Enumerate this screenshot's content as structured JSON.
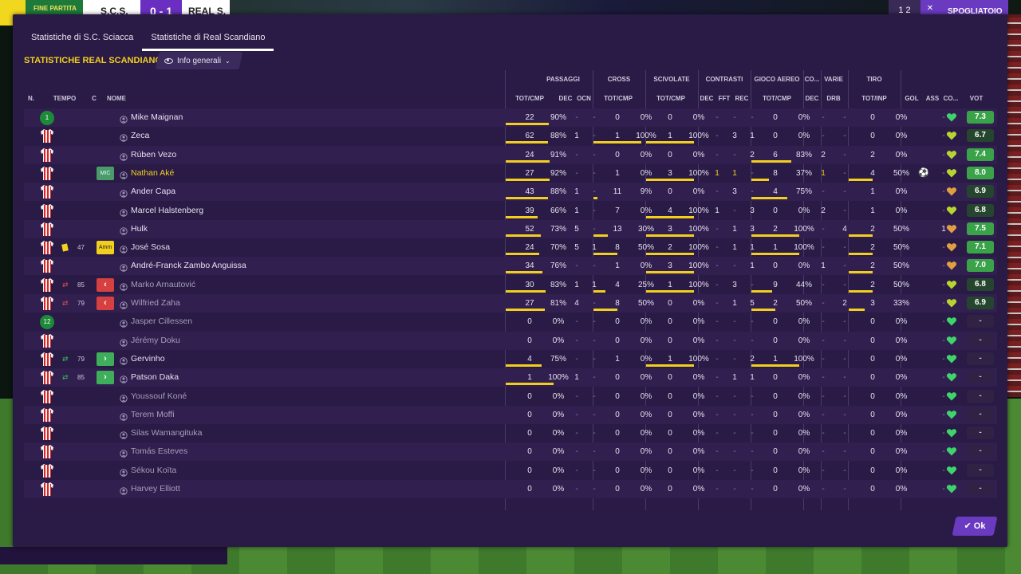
{
  "scoreboard": {
    "status": "FINE PARTITA",
    "home": "S.C.S.",
    "score": "0 - 1",
    "away": "REAL S."
  },
  "topbar": {
    "page": "1 2",
    "button": "SPOGLIATOIO"
  },
  "tabs": [
    {
      "label": "Statistiche di S.C. Sciacca"
    },
    {
      "label": "Statistiche di Real Scandiano",
      "active": true
    }
  ],
  "section_title": "STATISTICHE REAL SCANDIANO",
  "view_dropdown": {
    "label": "Info generali",
    "icon": "eye-icon"
  },
  "group_headers": {
    "passaggi": "PASSAGGI",
    "cross": "CROSS",
    "scivolate": "SCIVOLATE",
    "contrasti": "CONTRASTI",
    "gioco_aereo": "GIOCO AEREO",
    "co": "CO...",
    "varie": "VARIE",
    "tiro": "TIRO"
  },
  "columns": {
    "n": "N.",
    "tempo": "TEMPO",
    "c": "C",
    "nome": "NOME",
    "pass_totcmp": "TOT/CMP",
    "pass_dec": "DEC",
    "pass_ocn": "OCN",
    "cross_totcmp": "TOT/CMP",
    "sciv_totcmp": "TOT/CMP",
    "contr_dec": "DEC",
    "contr_fft": "FFT",
    "contr_rec": "REC",
    "aereo_totcmp": "TOT/CMP",
    "co_dec": "DEC",
    "varie_drb": "DRB",
    "tiro_totinp": "TOT/INP",
    "gol": "GOL",
    "ass": "ASS",
    "co": "CO...",
    "vot": "VOT"
  },
  "players": [
    {
      "badge": "1",
      "badge_type": "number",
      "name": "Mike Maignan",
      "pass": [
        "22",
        "90%"
      ],
      "pass_fill": 0.9,
      "pass_dec": "-",
      "pass_ocn": "-",
      "cross": [
        "0",
        "0%"
      ],
      "cross_fill": 0,
      "sciv": [
        "0",
        "0%"
      ],
      "sciv_fill": 0,
      "contr": [
        "-",
        "-",
        "-"
      ],
      "aereo": [
        "0",
        "0%"
      ],
      "aereo_fill": 0,
      "co_dec": "-",
      "drb": "-",
      "tiro": [
        "0",
        "0%"
      ],
      "tiro_fill": 0,
      "gol": "",
      "ass": "-",
      "vot": "7.3",
      "heart": "#3fd46a"
    },
    {
      "badge_type": "shirt",
      "name": "Zeca",
      "pass": [
        "62",
        "88%"
      ],
      "pass_fill": 0.88,
      "pass_dec": "1",
      "pass_ocn": "-",
      "cross": [
        "1",
        "100%"
      ],
      "cross_fill": 1,
      "sciv": [
        "1",
        "100%"
      ],
      "sciv_fill": 1,
      "contr": [
        "-",
        "3",
        "1"
      ],
      "aereo": [
        "0",
        "0%"
      ],
      "aereo_fill": 0,
      "co_dec": "-",
      "drb": "-",
      "tiro": [
        "0",
        "0%"
      ],
      "tiro_fill": 0,
      "gol": "",
      "ass": "-",
      "vot": "6.7",
      "heart": "#b8d430"
    },
    {
      "badge_type": "shirt",
      "name": "Rúben Vezo",
      "pass": [
        "24",
        "91%"
      ],
      "pass_fill": 0.91,
      "pass_dec": "-",
      "pass_ocn": "-",
      "cross": [
        "0",
        "0%"
      ],
      "cross_fill": 0,
      "sciv": [
        "0",
        "0%"
      ],
      "sciv_fill": 0,
      "contr": [
        "-",
        "-",
        "2"
      ],
      "aereo": [
        "6",
        "83%"
      ],
      "aereo_fill": 0.83,
      "co_dec": "2",
      "drb": "-",
      "tiro": [
        "2",
        "0%"
      ],
      "tiro_fill": 0,
      "gol": "",
      "ass": "-",
      "vot": "7.4",
      "heart": "#b8d430"
    },
    {
      "badge_type": "shirt",
      "pos": "MIC",
      "name": "Nathan Aké",
      "highlight": true,
      "pass": [
        "27",
        "92%"
      ],
      "pass_fill": 0.92,
      "pass_dec": "-",
      "pass_ocn": "-",
      "cross": [
        "1",
        "0%"
      ],
      "cross_fill": 0,
      "sciv": [
        "3",
        "100%"
      ],
      "sciv_fill": 1,
      "contr": [
        "1",
        "1",
        "-"
      ],
      "contr_hl": true,
      "aereo": [
        "8",
        "37%"
      ],
      "aereo_fill": 0.37,
      "co_dec": "1",
      "co_hl": true,
      "drb": "-",
      "tiro": [
        "4",
        "50%"
      ],
      "tiro_fill": 0.5,
      "gol": "ball",
      "ass": "-",
      "vot": "8.0",
      "heart": "#b8d430"
    },
    {
      "badge_type": "shirt",
      "name": "Ander Capa",
      "pass": [
        "43",
        "88%"
      ],
      "pass_fill": 0.88,
      "pass_dec": "1",
      "pass_ocn": "-",
      "cross": [
        "11",
        "9%"
      ],
      "cross_fill": 0.09,
      "sciv": [
        "0",
        "0%"
      ],
      "sciv_fill": 0,
      "contr": [
        "-",
        "3",
        "-"
      ],
      "aereo": [
        "4",
        "75%"
      ],
      "aereo_fill": 0.75,
      "co_dec": "-",
      "drb": "-",
      "tiro": [
        "1",
        "0%"
      ],
      "tiro_fill": 0,
      "gol": "",
      "ass": "-",
      "vot": "6.9",
      "heart": "#e0a040"
    },
    {
      "badge_type": "shirt",
      "name": "Marcel Halstenberg",
      "pass": [
        "39",
        "66%"
      ],
      "pass_fill": 0.66,
      "pass_dec": "1",
      "pass_ocn": "-",
      "cross": [
        "7",
        "0%"
      ],
      "cross_fill": 0,
      "sciv": [
        "4",
        "100%"
      ],
      "sciv_fill": 1,
      "contr": [
        "1",
        "-",
        "3"
      ],
      "aereo": [
        "0",
        "0%"
      ],
      "aereo_fill": 0,
      "co_dec": "2",
      "drb": "-",
      "tiro": [
        "1",
        "0%"
      ],
      "tiro_fill": 0,
      "gol": "",
      "ass": "-",
      "vot": "6.8",
      "heart": "#b8d430"
    },
    {
      "badge_type": "shirt",
      "name": "Hulk",
      "pass": [
        "52",
        "73%"
      ],
      "pass_fill": 0.73,
      "pass_dec": "5",
      "pass_ocn": "-",
      "cross": [
        "13",
        "30%"
      ],
      "cross_fill": 0.3,
      "sciv": [
        "3",
        "100%"
      ],
      "sciv_fill": 1,
      "contr": [
        "-",
        "1",
        "3"
      ],
      "aereo": [
        "2",
        "100%"
      ],
      "aereo_fill": 1,
      "co_dec": "-",
      "drb": "4",
      "tiro": [
        "2",
        "50%"
      ],
      "tiro_fill": 0.5,
      "gol": "",
      "ass": "1",
      "vot": "7.5",
      "heart": "#e0a040"
    },
    {
      "badge_type": "shirt",
      "card": "yellow",
      "minute": "47",
      "pos": "Amm",
      "pos_yellow": true,
      "name": "José Sosa",
      "pass": [
        "24",
        "70%"
      ],
      "pass_fill": 0.7,
      "pass_dec": "5",
      "pass_ocn": "1",
      "cross": [
        "8",
        "50%"
      ],
      "cross_fill": 0.5,
      "sciv": [
        "2",
        "100%"
      ],
      "sciv_fill": 1,
      "contr": [
        "-",
        "1",
        "1"
      ],
      "aereo": [
        "1",
        "100%"
      ],
      "aereo_fill": 1,
      "co_dec": "-",
      "drb": "-",
      "tiro": [
        "2",
        "50%"
      ],
      "tiro_fill": 0.5,
      "gol": "",
      "ass": "-",
      "vot": "7.1",
      "heart": "#e0a040"
    },
    {
      "badge_type": "shirt",
      "name": "André-Franck Zambo Anguissa",
      "pass": [
        "34",
        "76%"
      ],
      "pass_fill": 0.76,
      "pass_dec": "-",
      "pass_ocn": "-",
      "cross": [
        "1",
        "0%"
      ],
      "cross_fill": 0,
      "sciv": [
        "3",
        "100%"
      ],
      "sciv_fill": 1,
      "contr": [
        "-",
        "-",
        "1"
      ],
      "aereo": [
        "0",
        "0%"
      ],
      "aereo_fill": 0,
      "co_dec": "1",
      "drb": "-",
      "tiro": [
        "2",
        "50%"
      ],
      "tiro_fill": 0.5,
      "gol": "",
      "ass": "-",
      "vot": "7.0",
      "heart": "#e0a040"
    },
    {
      "badge_type": "shirt",
      "sub": "out",
      "minute": "85",
      "name": "Marko Arnautović",
      "dim": true,
      "pass": [
        "30",
        "83%"
      ],
      "pass_fill": 0.83,
      "pass_dec": "1",
      "pass_ocn": "1",
      "cross": [
        "4",
        "25%"
      ],
      "cross_fill": 0.25,
      "sciv": [
        "1",
        "100%"
      ],
      "sciv_fill": 1,
      "contr": [
        "-",
        "3",
        "-"
      ],
      "aereo": [
        "9",
        "44%"
      ],
      "aereo_fill": 0.44,
      "co_dec": "-",
      "drb": "-",
      "tiro": [
        "2",
        "50%"
      ],
      "tiro_fill": 0.5,
      "gol": "",
      "ass": "-",
      "vot": "6.8",
      "heart": "#b8d430"
    },
    {
      "badge_type": "shirt",
      "sub": "out",
      "minute": "79",
      "name": "Wilfried Zaha",
      "dim": true,
      "pass": [
        "27",
        "81%"
      ],
      "pass_fill": 0.81,
      "pass_dec": "4",
      "pass_ocn": "-",
      "cross": [
        "8",
        "50%"
      ],
      "cross_fill": 0.5,
      "sciv": [
        "0",
        "0%"
      ],
      "sciv_fill": 0,
      "contr": [
        "-",
        "1",
        "5"
      ],
      "aereo": [
        "2",
        "50%"
      ],
      "aereo_fill": 0.5,
      "co_dec": "-",
      "drb": "2",
      "tiro": [
        "3",
        "33%"
      ],
      "tiro_fill": 0.33,
      "gol": "",
      "ass": "-",
      "vot": "6.9",
      "heart": "#b8d430"
    },
    {
      "badge": "12",
      "badge_type": "number",
      "name": "Jasper Cillessen",
      "dim": true,
      "pass": [
        "0",
        "0%"
      ],
      "pass_fill": 0,
      "pass_dec": "-",
      "pass_ocn": "-",
      "cross": [
        "0",
        "0%"
      ],
      "cross_fill": 0,
      "sciv": [
        "0",
        "0%"
      ],
      "sciv_fill": 0,
      "contr": [
        "-",
        "-",
        "-"
      ],
      "aereo": [
        "0",
        "0%"
      ],
      "aereo_fill": 0,
      "co_dec": "-",
      "drb": "-",
      "tiro": [
        "0",
        "0%"
      ],
      "tiro_fill": 0,
      "gol": "",
      "ass": "-",
      "vot": "-",
      "heart": "#3fd46a"
    },
    {
      "badge_type": "shirt",
      "name": "Jérémy Doku",
      "dim": true,
      "pass": [
        "0",
        "0%"
      ],
      "pass_fill": 0,
      "pass_dec": "-",
      "pass_ocn": "-",
      "cross": [
        "0",
        "0%"
      ],
      "cross_fill": 0,
      "sciv": [
        "0",
        "0%"
      ],
      "sciv_fill": 0,
      "contr": [
        "-",
        "-",
        "-"
      ],
      "aereo": [
        "0",
        "0%"
      ],
      "aereo_fill": 0,
      "co_dec": "-",
      "drb": "-",
      "tiro": [
        "0",
        "0%"
      ],
      "tiro_fill": 0,
      "gol": "",
      "ass": "-",
      "vot": "-",
      "heart": "#3fd46a"
    },
    {
      "badge_type": "shirt",
      "sub": "in",
      "minute": "79",
      "name": "Gervinho",
      "pass": [
        "4",
        "75%"
      ],
      "pass_fill": 0.75,
      "pass_dec": "-",
      "pass_ocn": "-",
      "cross": [
        "1",
        "0%"
      ],
      "cross_fill": 0,
      "sciv": [
        "1",
        "100%"
      ],
      "sciv_fill": 1,
      "contr": [
        "-",
        "-",
        "2"
      ],
      "aereo": [
        "1",
        "100%"
      ],
      "aereo_fill": 1,
      "co_dec": "-",
      "drb": "-",
      "tiro": [
        "0",
        "0%"
      ],
      "tiro_fill": 0,
      "gol": "",
      "ass": "-",
      "vot": "-",
      "heart": "#3fd46a"
    },
    {
      "badge_type": "shirt",
      "sub": "in",
      "minute": "85",
      "name": "Patson Daka",
      "pass": [
        "1",
        "100%"
      ],
      "pass_fill": 1,
      "pass_dec": "1",
      "pass_ocn": "-",
      "cross": [
        "0",
        "0%"
      ],
      "cross_fill": 0,
      "sciv": [
        "0",
        "0%"
      ],
      "sciv_fill": 0,
      "contr": [
        "-",
        "1",
        "1"
      ],
      "aereo": [
        "0",
        "0%"
      ],
      "aereo_fill": 0,
      "co_dec": "-",
      "drb": "-",
      "tiro": [
        "0",
        "0%"
      ],
      "tiro_fill": 0,
      "gol": "",
      "ass": "-",
      "vot": "-",
      "heart": "#3fd46a"
    },
    {
      "badge_type": "shirt",
      "name": "Youssouf Koné",
      "dim": true,
      "pass": [
        "0",
        "0%"
      ],
      "pass_fill": 0,
      "pass_dec": "-",
      "pass_ocn": "-",
      "cross": [
        "0",
        "0%"
      ],
      "cross_fill": 0,
      "sciv": [
        "0",
        "0%"
      ],
      "sciv_fill": 0,
      "contr": [
        "-",
        "-",
        "-"
      ],
      "aereo": [
        "0",
        "0%"
      ],
      "aereo_fill": 0,
      "co_dec": "-",
      "drb": "-",
      "tiro": [
        "0",
        "0%"
      ],
      "tiro_fill": 0,
      "gol": "",
      "ass": "-",
      "vot": "-",
      "heart": "#3fd46a"
    },
    {
      "badge_type": "shirt",
      "name": "Terem Moffi",
      "dim": true,
      "pass": [
        "0",
        "0%"
      ],
      "pass_fill": 0,
      "pass_dec": "-",
      "pass_ocn": "-",
      "cross": [
        "0",
        "0%"
      ],
      "cross_fill": 0,
      "sciv": [
        "0",
        "0%"
      ],
      "sciv_fill": 0,
      "contr": [
        "-",
        "-",
        "-"
      ],
      "aereo": [
        "0",
        "0%"
      ],
      "aereo_fill": 0,
      "co_dec": "-",
      "drb": "-",
      "tiro": [
        "0",
        "0%"
      ],
      "tiro_fill": 0,
      "gol": "",
      "ass": "-",
      "vot": "-",
      "heart": "#3fd46a"
    },
    {
      "badge_type": "shirt",
      "name": "Silas Wamangituka",
      "dim": true,
      "pass": [
        "0",
        "0%"
      ],
      "pass_fill": 0,
      "pass_dec": "-",
      "pass_ocn": "-",
      "cross": [
        "0",
        "0%"
      ],
      "cross_fill": 0,
      "sciv": [
        "0",
        "0%"
      ],
      "sciv_fill": 0,
      "contr": [
        "-",
        "-",
        "-"
      ],
      "aereo": [
        "0",
        "0%"
      ],
      "aereo_fill": 0,
      "co_dec": "-",
      "drb": "-",
      "tiro": [
        "0",
        "0%"
      ],
      "tiro_fill": 0,
      "gol": "",
      "ass": "-",
      "vot": "-",
      "heart": "#3fd46a"
    },
    {
      "badge_type": "shirt",
      "name": "Tomás Esteves",
      "dim": true,
      "pass": [
        "0",
        "0%"
      ],
      "pass_fill": 0,
      "pass_dec": "-",
      "pass_ocn": "-",
      "cross": [
        "0",
        "0%"
      ],
      "cross_fill": 0,
      "sciv": [
        "0",
        "0%"
      ],
      "sciv_fill": 0,
      "contr": [
        "-",
        "-",
        "-"
      ],
      "aereo": [
        "0",
        "0%"
      ],
      "aereo_fill": 0,
      "co_dec": "-",
      "drb": "-",
      "tiro": [
        "0",
        "0%"
      ],
      "tiro_fill": 0,
      "gol": "",
      "ass": "-",
      "vot": "-",
      "heart": "#3fd46a"
    },
    {
      "badge_type": "shirt",
      "name": "Sékou Koïta",
      "dim": true,
      "pass": [
        "0",
        "0%"
      ],
      "pass_fill": 0,
      "pass_dec": "-",
      "pass_ocn": "-",
      "cross": [
        "0",
        "0%"
      ],
      "cross_fill": 0,
      "sciv": [
        "0",
        "0%"
      ],
      "sciv_fill": 0,
      "contr": [
        "-",
        "-",
        "-"
      ],
      "aereo": [
        "0",
        "0%"
      ],
      "aereo_fill": 0,
      "co_dec": "-",
      "drb": "-",
      "tiro": [
        "0",
        "0%"
      ],
      "tiro_fill": 0,
      "gol": "",
      "ass": "-",
      "vot": "-",
      "heart": "#3fd46a"
    },
    {
      "badge_type": "shirt",
      "name": "Harvey Elliott",
      "dim": true,
      "pass": [
        "0",
        "0%"
      ],
      "pass_fill": 0,
      "pass_dec": "-",
      "pass_ocn": "-",
      "cross": [
        "0",
        "0%"
      ],
      "cross_fill": 0,
      "sciv": [
        "0",
        "0%"
      ],
      "sciv_fill": 0,
      "contr": [
        "-",
        "-",
        "-"
      ],
      "aereo": [
        "0",
        "0%"
      ],
      "aereo_fill": 0,
      "co_dec": "-",
      "drb": "-",
      "tiro": [
        "0",
        "0%"
      ],
      "tiro_fill": 0,
      "gol": "",
      "ass": "-",
      "vot": "-",
      "heart": "#3fd46a"
    }
  ],
  "ok_button": "Ok",
  "colors": {
    "panel": "#2a1a46",
    "accent": "#6a3ac0",
    "highlight": "#f2cf1f",
    "rating_high": "#3aa34a",
    "rating_mid": "#2f8a3c"
  }
}
